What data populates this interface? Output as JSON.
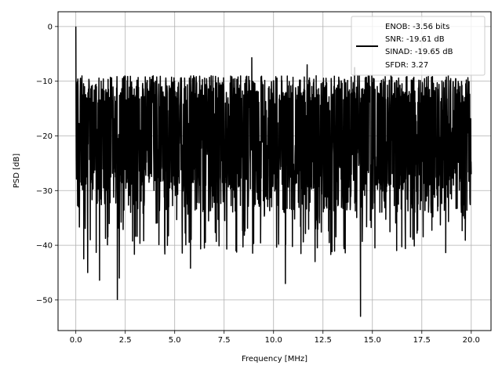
{
  "chart_data": {
    "type": "line",
    "title": "",
    "xlabel": "Frequency [MHz]",
    "ylabel": "PSD [dB]",
    "xlim": [
      -0.9,
      21.0
    ],
    "ylim": [
      -55.6,
      2.7
    ],
    "grid": true,
    "legend_position": "top-right",
    "x_ticks": [
      0.0,
      2.5,
      5.0,
      7.5,
      10.0,
      12.5,
      15.0,
      17.5,
      20.0
    ],
    "x_tick_labels": [
      "0.0",
      "2.5",
      "5.0",
      "7.5",
      "10.0",
      "12.5",
      "15.0",
      "17.5",
      "20.0"
    ],
    "y_ticks": [
      0,
      -10,
      -20,
      -30,
      -40,
      -50
    ],
    "y_tick_labels": [
      "0",
      "−10",
      "−20",
      "−30",
      "−40",
      "−50"
    ],
    "legend": {
      "lines": [
        "ENOB: -3.56 bits",
        "SNR: -19.61 dB",
        "SINAD: -19.65 dB",
        "SFDR: 3.27"
      ],
      "line_color": "#000000"
    },
    "series": [
      {
        "color": "#000000",
        "description_of_shape": "dense noise spectrum; peak 0 dB at DC, noise floor mostly between -30 and -12 dB",
        "x_range": [
          0.0,
          20.0
        ],
        "points": 2000,
        "landmarks": [
          {
            "x": 0.0,
            "y": 0.0
          },
          {
            "x": 0.02,
            "y": -24.0
          },
          {
            "x": 0.1,
            "y": -9.6
          },
          {
            "x": 0.4,
            "y": -42.5
          },
          {
            "x": 0.6,
            "y": -45.0
          },
          {
            "x": 1.2,
            "y": -46.4
          },
          {
            "x": 2.1,
            "y": -49.9
          },
          {
            "x": 2.2,
            "y": -46.0
          },
          {
            "x": 5.8,
            "y": -44.2
          },
          {
            "x": 8.1,
            "y": -41.0
          },
          {
            "x": 8.9,
            "y": -5.7
          },
          {
            "x": 10.6,
            "y": -47.0
          },
          {
            "x": 11.7,
            "y": -7.0
          },
          {
            "x": 12.1,
            "y": -43.0
          },
          {
            "x": 14.1,
            "y": -7.5
          },
          {
            "x": 14.4,
            "y": -53.0
          },
          {
            "x": 20.0,
            "y": -27.0
          }
        ],
        "band_low": -30,
        "band_high": -12
      }
    ]
  }
}
